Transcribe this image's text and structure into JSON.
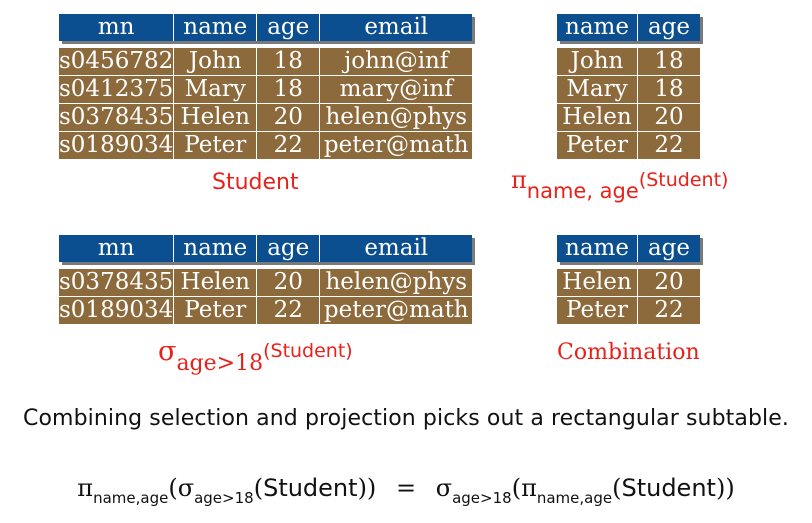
{
  "student_table": {
    "headers": [
      "mn",
      "name",
      "age",
      "email"
    ],
    "rows": [
      [
        "s0456782",
        "John",
        "18",
        "john@inf"
      ],
      [
        "s0412375",
        "Mary",
        "18",
        "mary@inf"
      ],
      [
        "s0378435",
        "Helen",
        "20",
        "helen@phys"
      ],
      [
        "s0189034",
        "Peter",
        "22",
        "peter@math"
      ]
    ],
    "label": "Student"
  },
  "projection_table": {
    "headers": [
      "name",
      "age"
    ],
    "rows": [
      [
        "John",
        "18"
      ],
      [
        "Mary",
        "18"
      ],
      [
        "Helen",
        "20"
      ],
      [
        "Peter",
        "22"
      ]
    ],
    "label": {
      "op": "π",
      "sub": "name, age",
      "arg": "(Student)"
    }
  },
  "selection_table": {
    "headers": [
      "mn",
      "name",
      "age",
      "email"
    ],
    "rows": [
      [
        "s0378435",
        "Helen",
        "20",
        "helen@phys"
      ],
      [
        "s0189034",
        "Peter",
        "22",
        "peter@math"
      ]
    ],
    "label": {
      "op": "σ",
      "sub": "age>18",
      "arg": "(Student)"
    }
  },
  "combination_table": {
    "headers": [
      "name",
      "age"
    ],
    "rows": [
      [
        "Helen",
        "20"
      ],
      [
        "Peter",
        "22"
      ]
    ],
    "label": "Combination"
  },
  "caption": "Combining selection and projection picks out a rectangular subtable.",
  "equation": {
    "pi": "π",
    "sigma": "σ",
    "pi_sub": "name,age",
    "sigma_sub": "age>18",
    "relation": "Student",
    "equals": "="
  },
  "colors": {
    "header": "#0b4f91",
    "row": "#8c6a3c",
    "label": "#e8211a",
    "shadow": "#7a7a7a"
  }
}
